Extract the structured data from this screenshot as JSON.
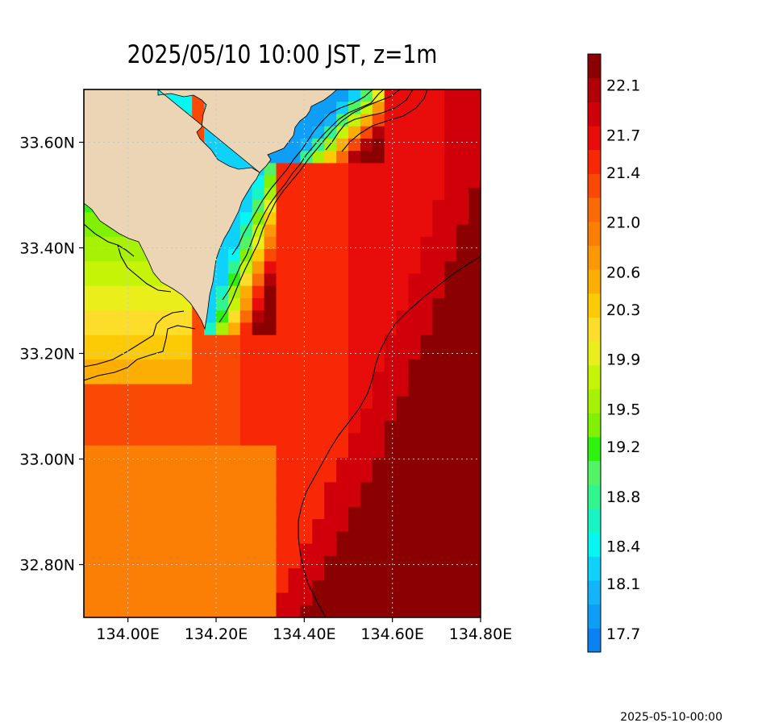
{
  "title": "2025/05/10 10:00 JST, z=1m",
  "timestamp": "2025-05-10-00:00",
  "map": {
    "lon_range": [
      133.9,
      134.8
    ],
    "lat_range": [
      32.7,
      33.7
    ],
    "lon_ticks": [
      {
        "value": 134.0,
        "label": "134.00E"
      },
      {
        "value": 134.2,
        "label": "134.20E"
      },
      {
        "value": 134.4,
        "label": "134.40E"
      },
      {
        "value": 134.6,
        "label": "134.60E"
      },
      {
        "value": 134.8,
        "label": "134.80E"
      }
    ],
    "lat_ticks": [
      {
        "value": 33.6,
        "label": "33.60N"
      },
      {
        "value": 33.4,
        "label": "33.40N"
      },
      {
        "value": 33.2,
        "label": "33.20N"
      },
      {
        "value": 33.0,
        "label": "33.00N"
      },
      {
        "value": 32.8,
        "label": "32.80N"
      }
    ],
    "grid": true,
    "land_color": "#ecd5b5",
    "variable": "sea surface temperature"
  },
  "colorbar": {
    "min": 17.55,
    "max": 22.35,
    "colors": [
      "#0a82f2",
      "#0f9ef7",
      "#13b4fa",
      "#0fd2fc",
      "#08f6f2",
      "#18f4c3",
      "#33f590",
      "#52f466",
      "#2ef30f",
      "#80f103",
      "#a7f106",
      "#c5f407",
      "#eaef1b",
      "#fcdd2a",
      "#fdcb05",
      "#fcae04",
      "#fc9805",
      "#fb7e05",
      "#fa6b08",
      "#fa4905",
      "#f82806",
      "#e80d0a",
      "#cf000a",
      "#b20008",
      "#8b0000"
    ],
    "labels": [
      {
        "value": 17.7,
        "label": "17.7"
      },
      {
        "value": 18.1,
        "label": "18.1"
      },
      {
        "value": 18.4,
        "label": "18.4"
      },
      {
        "value": 18.8,
        "label": "18.8"
      },
      {
        "value": 19.2,
        "label": "19.2"
      },
      {
        "value": 19.5,
        "label": "19.5"
      },
      {
        "value": 19.9,
        "label": "19.9"
      },
      {
        "value": 20.3,
        "label": "20.3"
      },
      {
        "value": 20.6,
        "label": "20.6"
      },
      {
        "value": 21.0,
        "label": "21.0"
      },
      {
        "value": 21.4,
        "label": "21.4"
      },
      {
        "value": 21.7,
        "label": "21.7"
      },
      {
        "value": 22.1,
        "label": "22.1"
      }
    ]
  }
}
